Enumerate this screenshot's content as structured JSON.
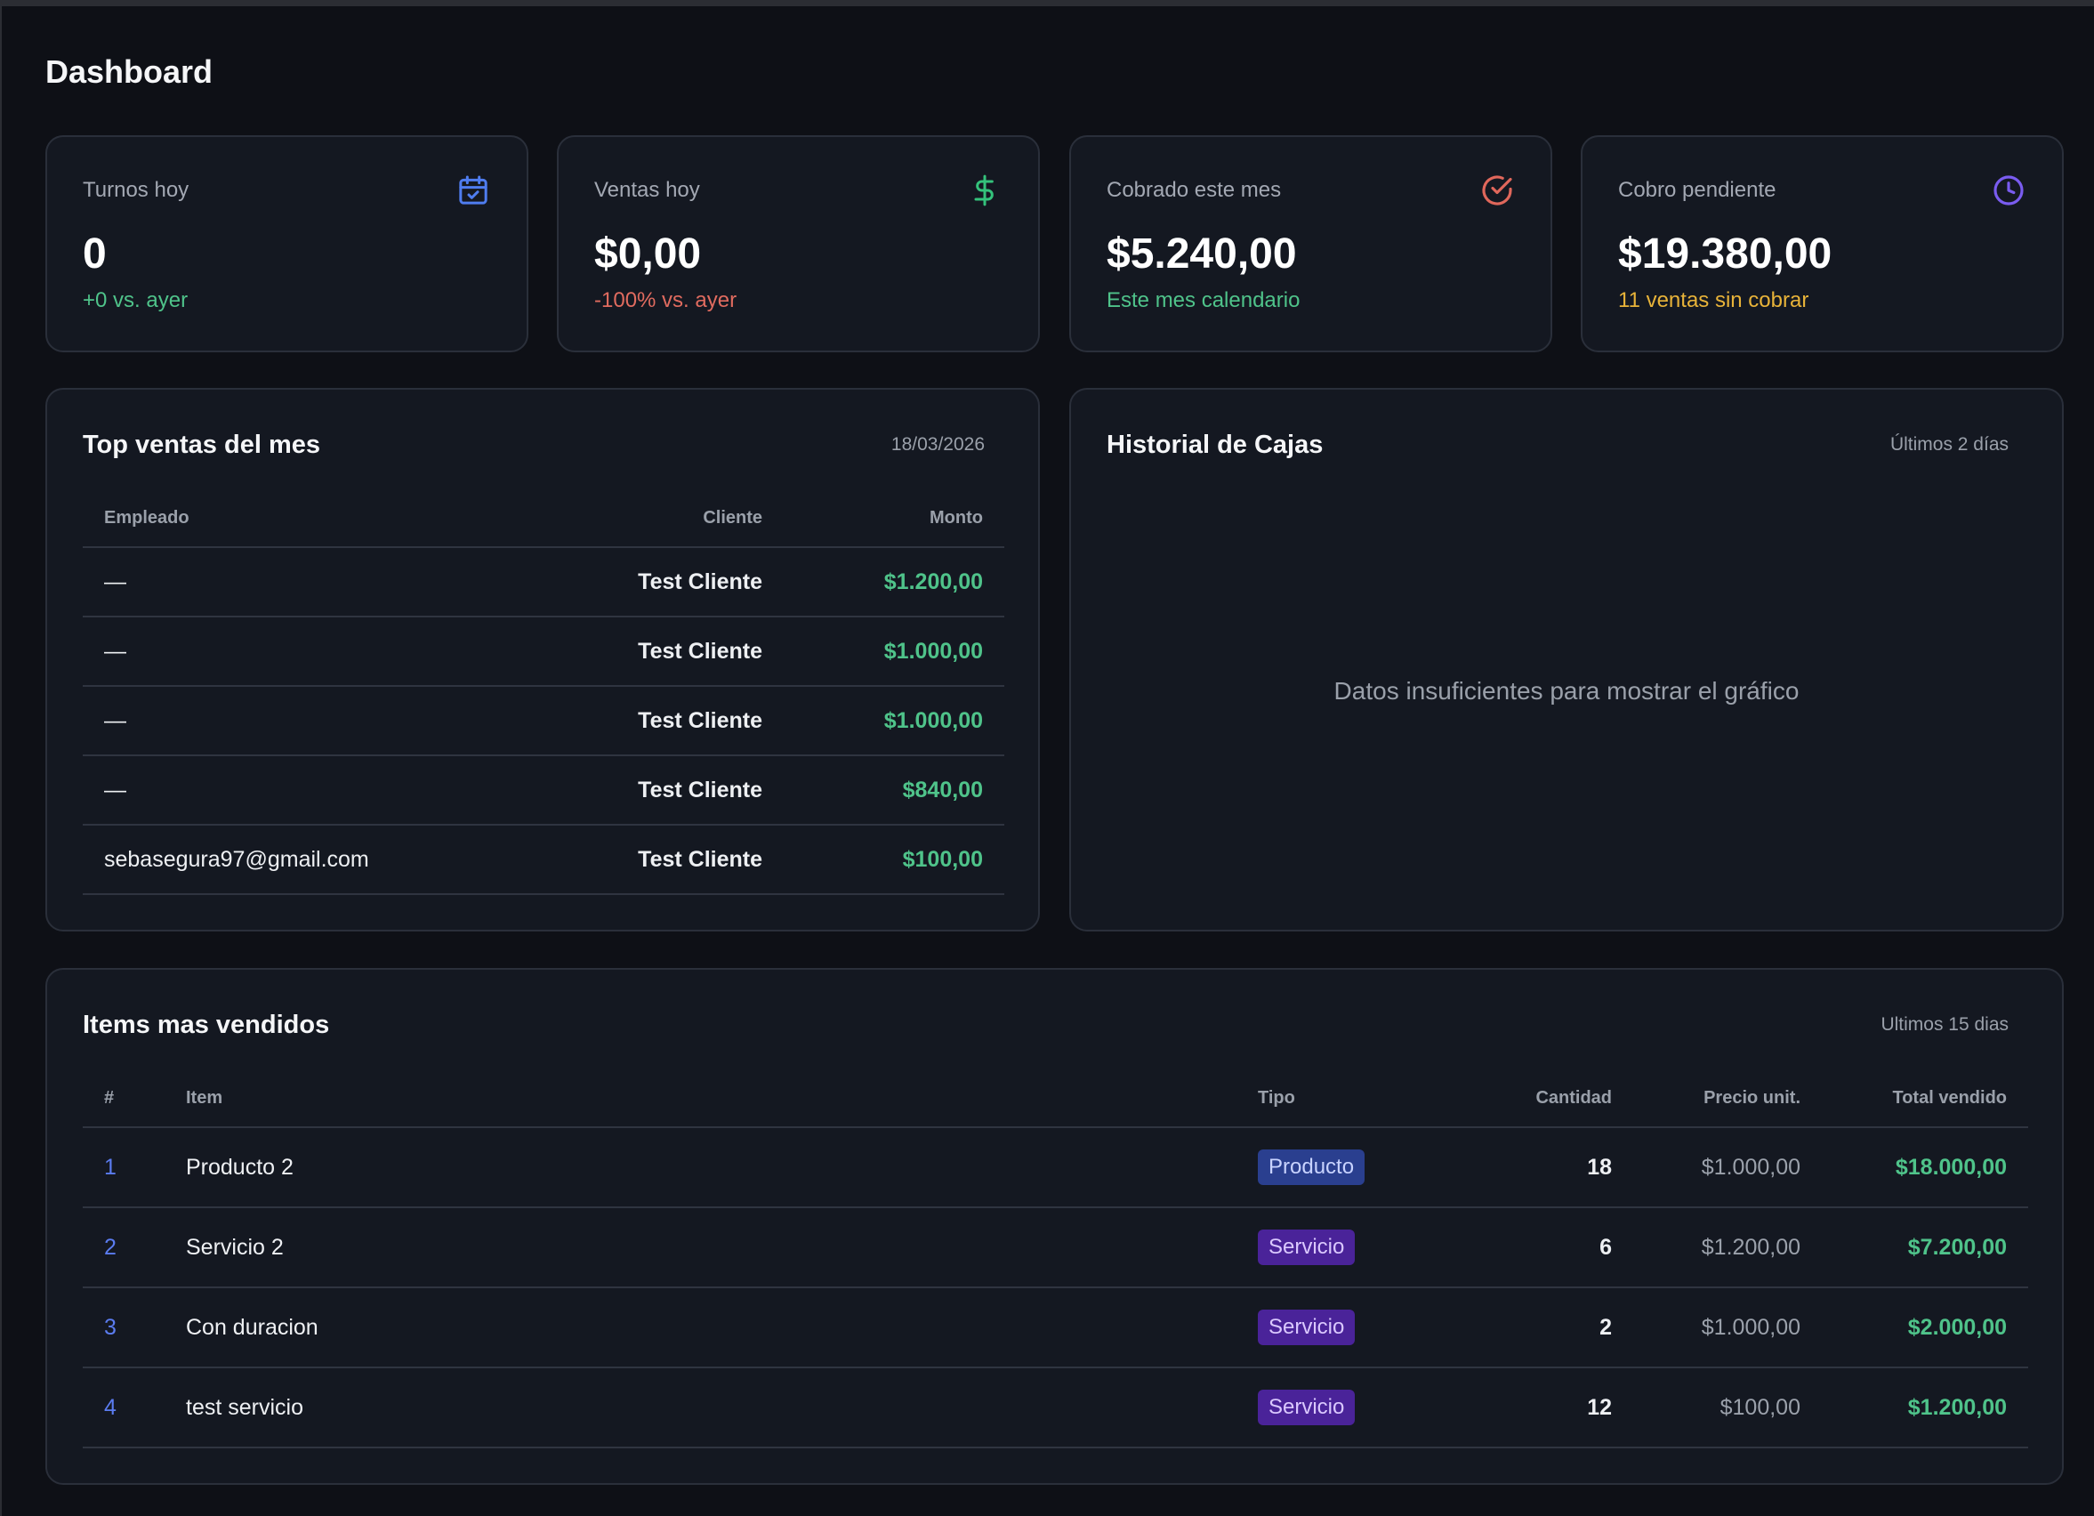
{
  "page": {
    "title": "Dashboard"
  },
  "stats": [
    {
      "label": "Turnos hoy",
      "value": "0",
      "sub": "+0 vs. ayer",
      "sub_color": "#4fc38a",
      "icon": "calendar-check-icon",
      "icon_color": "#4f7df0"
    },
    {
      "label": "Ventas hoy",
      "value": "$0,00",
      "sub": "-100% vs. ayer",
      "sub_color": "#e06b5f",
      "icon": "dollar-icon",
      "icon_color": "#34c27b"
    },
    {
      "label": "Cobrado este mes",
      "value": "$5.240,00",
      "sub": "Este mes calendario",
      "sub_color": "#4fc38a",
      "icon": "check-circle-icon",
      "icon_color": "#e0675b"
    },
    {
      "label": "Cobro pendiente",
      "value": "$19.380,00",
      "sub": "11 ventas sin cobrar",
      "sub_color": "#e8b339",
      "icon": "clock-icon",
      "icon_color": "#7a5cf0"
    }
  ],
  "top_ventas": {
    "title": "Top ventas del mes",
    "date": "18/03/2026",
    "columns": [
      "Empleado",
      "Cliente",
      "Monto"
    ],
    "rows": [
      {
        "empleado": "—",
        "cliente": "Test Cliente",
        "monto": "$1.200,00"
      },
      {
        "empleado": "—",
        "cliente": "Test Cliente",
        "monto": "$1.000,00"
      },
      {
        "empleado": "—",
        "cliente": "Test Cliente",
        "monto": "$1.000,00"
      },
      {
        "empleado": "—",
        "cliente": "Test Cliente",
        "monto": "$840,00"
      },
      {
        "empleado": "sebasegura97@gmail.com",
        "cliente": "Test Cliente",
        "monto": "$100,00"
      }
    ]
  },
  "historial": {
    "title": "Historial de Cajas",
    "note": "Últimos 2 días",
    "empty_message": "Datos insuficientes para mostrar el gráfico"
  },
  "items": {
    "title": "Items mas vendidos",
    "note": "Ultimos 15 dias",
    "columns": [
      "#",
      "Item",
      "Tipo",
      "Cantidad",
      "Precio unit.",
      "Total vendido"
    ],
    "rows": [
      {
        "idx": "1",
        "item": "Producto 2",
        "tipo": "Producto",
        "cantidad": "18",
        "precio": "$1.000,00",
        "total": "$18.000,00"
      },
      {
        "idx": "2",
        "item": "Servicio 2",
        "tipo": "Servicio",
        "cantidad": "6",
        "precio": "$1.200,00",
        "total": "$7.200,00"
      },
      {
        "idx": "3",
        "item": "Con duracion",
        "tipo": "Servicio",
        "cantidad": "2",
        "precio": "$1.000,00",
        "total": "$2.000,00"
      },
      {
        "idx": "4",
        "item": "test servicio",
        "tipo": "Servicio",
        "cantidad": "12",
        "precio": "$100,00",
        "total": "$1.200,00"
      }
    ]
  }
}
